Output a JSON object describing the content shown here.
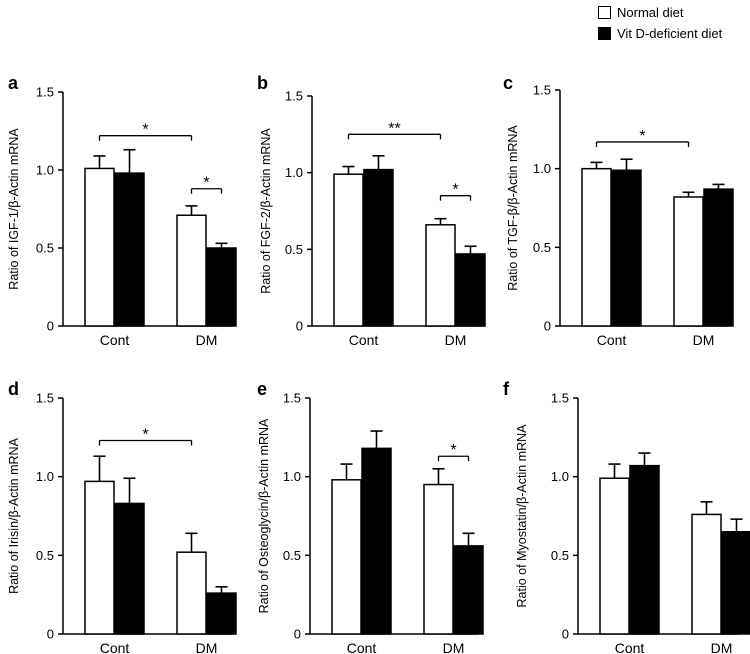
{
  "legend": {
    "normal": "Normal diet",
    "vitd": "Vit D-deficient diet"
  },
  "colors": {
    "normal": "#ffffff",
    "vitd": "#000000",
    "axis": "#000000"
  },
  "chart_data": [
    {
      "type": "bar",
      "panel": "a",
      "ylabel": "Ratio of IGF-1/β-Actin mRNA",
      "categories": [
        "Cont",
        "DM"
      ],
      "ylim": [
        0,
        1.5
      ],
      "yticks": [
        "0",
        "0.5",
        "1.0",
        "1.5"
      ],
      "series": [
        {
          "name": "Normal diet",
          "values": [
            1.01,
            0.71
          ],
          "errors": [
            0.08,
            0.06
          ]
        },
        {
          "name": "Vit D-deficient diet",
          "values": [
            0.98,
            0.5
          ],
          "errors": [
            0.15,
            0.03
          ]
        }
      ],
      "significance": [
        {
          "label": "*",
          "from": "Cont.Normal diet",
          "to": "DM.Normal diet",
          "y": 1.22
        },
        {
          "label": "*",
          "from": "DM.Normal diet",
          "to": "DM.Vit D-deficient diet",
          "y": 0.88
        }
      ]
    },
    {
      "type": "bar",
      "panel": "b",
      "ylabel": "Ratio of FGF-2/β-Actin mRNA",
      "categories": [
        "Cont",
        "DM"
      ],
      "ylim": [
        0,
        1.5
      ],
      "yticks": [
        "0",
        "0.5",
        "1.0",
        "1.5"
      ],
      "series": [
        {
          "name": "Normal diet",
          "values": [
            0.99,
            0.66
          ],
          "errors": [
            0.05,
            0.04
          ]
        },
        {
          "name": "Vit D-deficient diet",
          "values": [
            1.02,
            0.47
          ],
          "errors": [
            0.09,
            0.05
          ]
        }
      ],
      "significance": [
        {
          "label": "**",
          "from": "Cont.Normal diet",
          "to": "DM.Normal diet",
          "y": 1.25
        },
        {
          "label": "*",
          "from": "DM.Normal diet",
          "to": "DM.Vit D-deficient diet",
          "y": 0.85
        }
      ]
    },
    {
      "type": "bar",
      "panel": "c",
      "ylabel": "Ratio of TGF-β/β-Actin mRNA",
      "categories": [
        "Cont",
        "DM"
      ],
      "ylim": [
        0,
        1.5
      ],
      "yticks": [
        "0",
        "0.5",
        "1.0",
        "1.5"
      ],
      "series": [
        {
          "name": "Normal diet",
          "values": [
            1.0,
            0.82
          ],
          "errors": [
            0.04,
            0.03
          ]
        },
        {
          "name": "Vit D-deficient diet",
          "values": [
            0.99,
            0.87
          ],
          "errors": [
            0.07,
            0.03
          ]
        }
      ],
      "significance": [
        {
          "label": "*",
          "from": "Cont.Normal diet",
          "to": "DM.Normal diet",
          "y": 1.17
        }
      ]
    },
    {
      "type": "bar",
      "panel": "d",
      "ylabel": "Ratio of Irisin/β-Actin mRNA",
      "categories": [
        "Cont",
        "DM"
      ],
      "ylim": [
        0,
        1.5
      ],
      "yticks": [
        "0",
        "0.5",
        "1.0",
        "1.5"
      ],
      "series": [
        {
          "name": "Normal diet",
          "values": [
            0.97,
            0.52
          ],
          "errors": [
            0.16,
            0.12
          ]
        },
        {
          "name": "Vit D-deficient diet",
          "values": [
            0.83,
            0.26
          ],
          "errors": [
            0.16,
            0.04
          ]
        }
      ],
      "significance": [
        {
          "label": "*",
          "from": "Cont.Normal diet",
          "to": "DM.Normal diet",
          "y": 1.23
        }
      ]
    },
    {
      "type": "bar",
      "panel": "e",
      "ylabel": "Ratio of Osteoglycin/β-Actin mRNA",
      "categories": [
        "Cont",
        "DM"
      ],
      "ylim": [
        0,
        1.5
      ],
      "yticks": [
        "0",
        "0.5",
        "1.0",
        "1.5"
      ],
      "series": [
        {
          "name": "Normal diet",
          "values": [
            0.98,
            0.95
          ],
          "errors": [
            0.1,
            0.1
          ]
        },
        {
          "name": "Vit D-deficient diet",
          "values": [
            1.18,
            0.56
          ],
          "errors": [
            0.11,
            0.08
          ]
        }
      ],
      "significance": [
        {
          "label": "*",
          "from": "DM.Normal diet",
          "to": "DM.Vit D-deficient diet",
          "y": 1.13
        }
      ]
    },
    {
      "type": "bar",
      "panel": "f",
      "ylabel": "Ratio of Myostatin/β-Actin mRNA",
      "categories": [
        "Cont",
        "DM"
      ],
      "ylim": [
        0,
        1.5
      ],
      "yticks": [
        "0",
        "0.5",
        "1.0",
        "1.5"
      ],
      "series": [
        {
          "name": "Normal diet",
          "values": [
            0.99,
            0.76
          ],
          "errors": [
            0.09,
            0.08
          ]
        },
        {
          "name": "Vit D-deficient diet",
          "values": [
            1.07,
            0.65
          ],
          "errors": [
            0.08,
            0.08
          ]
        }
      ],
      "significance": []
    }
  ]
}
